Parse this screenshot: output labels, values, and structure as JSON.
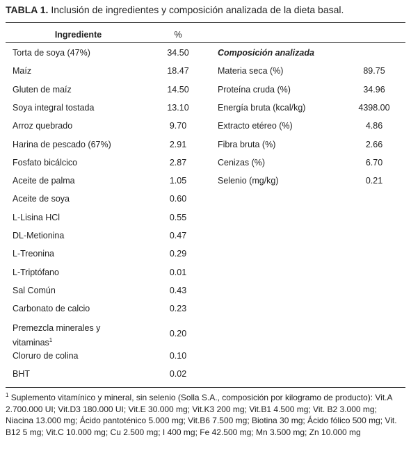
{
  "title": {
    "label": "TABLA 1.",
    "text": "Inclusión de ingredientes y composición analizada de la dieta basal."
  },
  "table": {
    "headers": [
      "Ingrediente",
      "%"
    ],
    "rows": [
      {
        "name": "Torta de soya (47%)",
        "value": "34.50"
      },
      {
        "name": "Maíz",
        "value": "18.47"
      },
      {
        "name": "Gluten de maíz",
        "value": "14.50"
      },
      {
        "name": "Soya integral tostada",
        "value": "13.10"
      },
      {
        "name": "Arroz quebrado",
        "value": "9.70"
      },
      {
        "name": "Harina de pescado (67%)",
        "value": "2.91"
      },
      {
        "name": "Fosfato bicálcico",
        "value": "2.87"
      },
      {
        "name": "Aceite de palma",
        "value": "1.05"
      },
      {
        "name": "Aceite de soya",
        "value": "0.60"
      },
      {
        "name": "L-Lisina HCl",
        "value": "0.55"
      },
      {
        "name": "DL-Metionina",
        "value": "0.47"
      },
      {
        "name": "L-Treonina",
        "value": "0.29"
      },
      {
        "name": "L-Triptófano",
        "value": "0.01"
      },
      {
        "name": "Sal Común",
        "value": "0.43"
      },
      {
        "name": "Carbonato de calcio",
        "value": "0.23"
      },
      {
        "name": "Premezcla minerales y vitaminas",
        "value": "0.20",
        "note": "1"
      },
      {
        "name": "Cloruro de colina",
        "value": "0.10"
      },
      {
        "name": "BHT",
        "value": "0.02"
      }
    ],
    "composition": {
      "title": "Composición analizada",
      "rows": [
        {
          "name": "Materia seca (%)",
          "value": "89.75"
        },
        {
          "name": "Proteína cruda (%)",
          "value": "34.96"
        },
        {
          "name": "Energía bruta (kcal/kg)",
          "value": "4398.00"
        },
        {
          "name": "Extracto etéreo (%)",
          "value": "4.86"
        },
        {
          "name": "Fibra bruta (%)",
          "value": "2.66"
        },
        {
          "name": "Cenizas (%)",
          "value": "6.70"
        },
        {
          "name": "Selenio (mg/kg)",
          "value": "0.21"
        }
      ]
    }
  },
  "footnote": {
    "mark": "1",
    "text": "Suplemento vitamínico y mineral, sin selenio (Solla S.A., composición por kilogramo de producto): Vit.A 2.700.000 UI; Vit.D3 180.000 UI; Vit.E 30.000 mg; Vit.K3 200 mg; Vit.B1 4.500 mg; Vit. B2 3.000 mg; Niacina 13.000 mg; Ácido pantoténico 5.000 mg; Vit.B6 7.500 mg; Biotina 30 mg; Ácido fólico 500 mg; Vit. B12  5 mg; Vit.C 10.000 mg; Cu 2.500 mg; I 400 mg; Fe 42.500 mg; Mn 3.500 mg; Zn 10.000 mg"
  }
}
